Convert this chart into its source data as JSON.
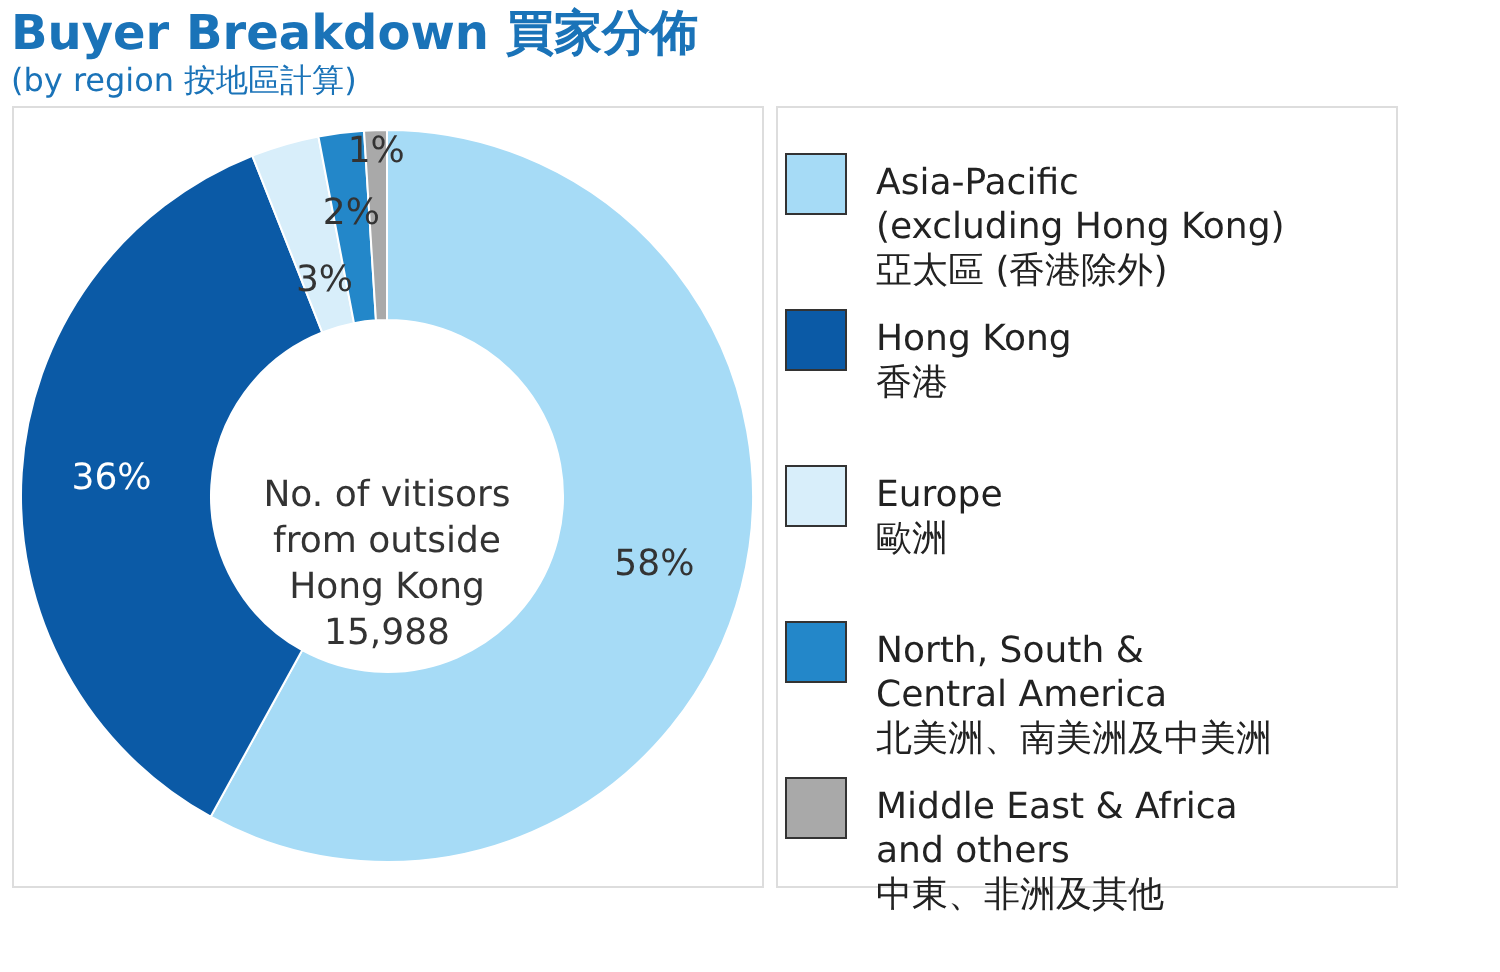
{
  "chart_data": {
    "type": "donut",
    "title": "Buyer Breakdown  買家分佈",
    "subtitle": "(by region 按地區計算)",
    "categories": [
      "Asia-Pacific\n(excluding Hong Kong)\n亞太區 (香港除外)",
      "Hong Kong\n香港",
      "Europe\n歐洲",
      "North, South &\nCentral America\n北美洲、南美洲及中美洲",
      "Middle East & Africa\nand others\n中東、非洲及其他"
    ],
    "values": [
      58,
      36,
      3,
      2,
      1
    ],
    "value_labels": [
      "58%",
      "36%",
      "3%",
      "2%",
      "1%"
    ],
    "colors": [
      "#a6dbf6",
      "#0b5aa6",
      "#d8eefa",
      "#2387c9",
      "#a9a9a9"
    ],
    "annotations": [
      "No. of vitisors\nfrom outside\nHong Kong\n15,988"
    ],
    "legend": "right"
  }
}
